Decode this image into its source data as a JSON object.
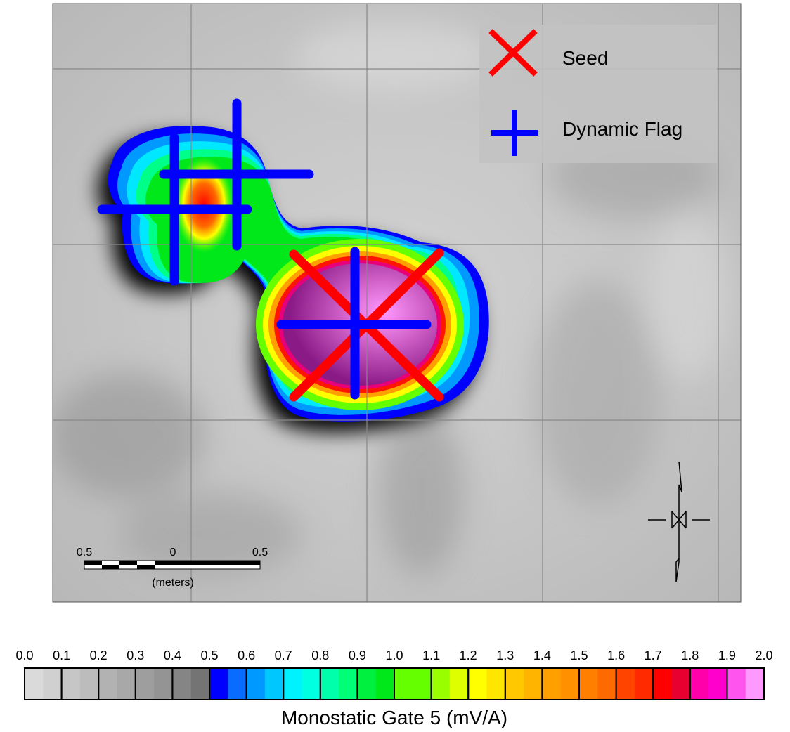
{
  "legend": {
    "items": [
      {
        "label": "Seed"
      },
      {
        "label": "Dynamic Flag"
      }
    ]
  },
  "scale_bar": {
    "labels": [
      "0.5",
      "0",
      "0.5"
    ],
    "unit": "(meters)"
  },
  "colorbar": {
    "title": "Monostatic Gate 5 (mV/A)",
    "ticks": [
      "0.0",
      "0.1",
      "0.2",
      "0.3",
      "0.4",
      "0.5",
      "0.6",
      "0.7",
      "0.8",
      "0.9",
      "1.0",
      "1.1",
      "1.2",
      "1.3",
      "1.4",
      "1.5",
      "1.6",
      "1.7",
      "1.8",
      "1.9",
      "2.0"
    ],
    "colors": [
      "#dadada",
      "#d0d0d0",
      "#c6c6c6",
      "#bcbcbc",
      "#b2b2b2",
      "#a8a8a8",
      "#9e9e9e",
      "#949494",
      "#858585",
      "#747474",
      "#0000ff",
      "#0a6cff",
      "#0099ff",
      "#00c8ff",
      "#00f2ff",
      "#00ffe0",
      "#00ffaa",
      "#00ff77",
      "#00f040",
      "#00e81a",
      "#66ff00",
      "#66ff00",
      "#99ff00",
      "#ddff00",
      "#ffff00",
      "#ffe600",
      "#ffc800",
      "#ffb400",
      "#ffa000",
      "#ff9100",
      "#ff8000",
      "#ff6a00",
      "#ff4400",
      "#ff2a00",
      "#ff0000",
      "#e80030",
      "#ff00aa",
      "#ff00cc",
      "#ff55ee",
      "#ff99ff"
    ]
  }
}
